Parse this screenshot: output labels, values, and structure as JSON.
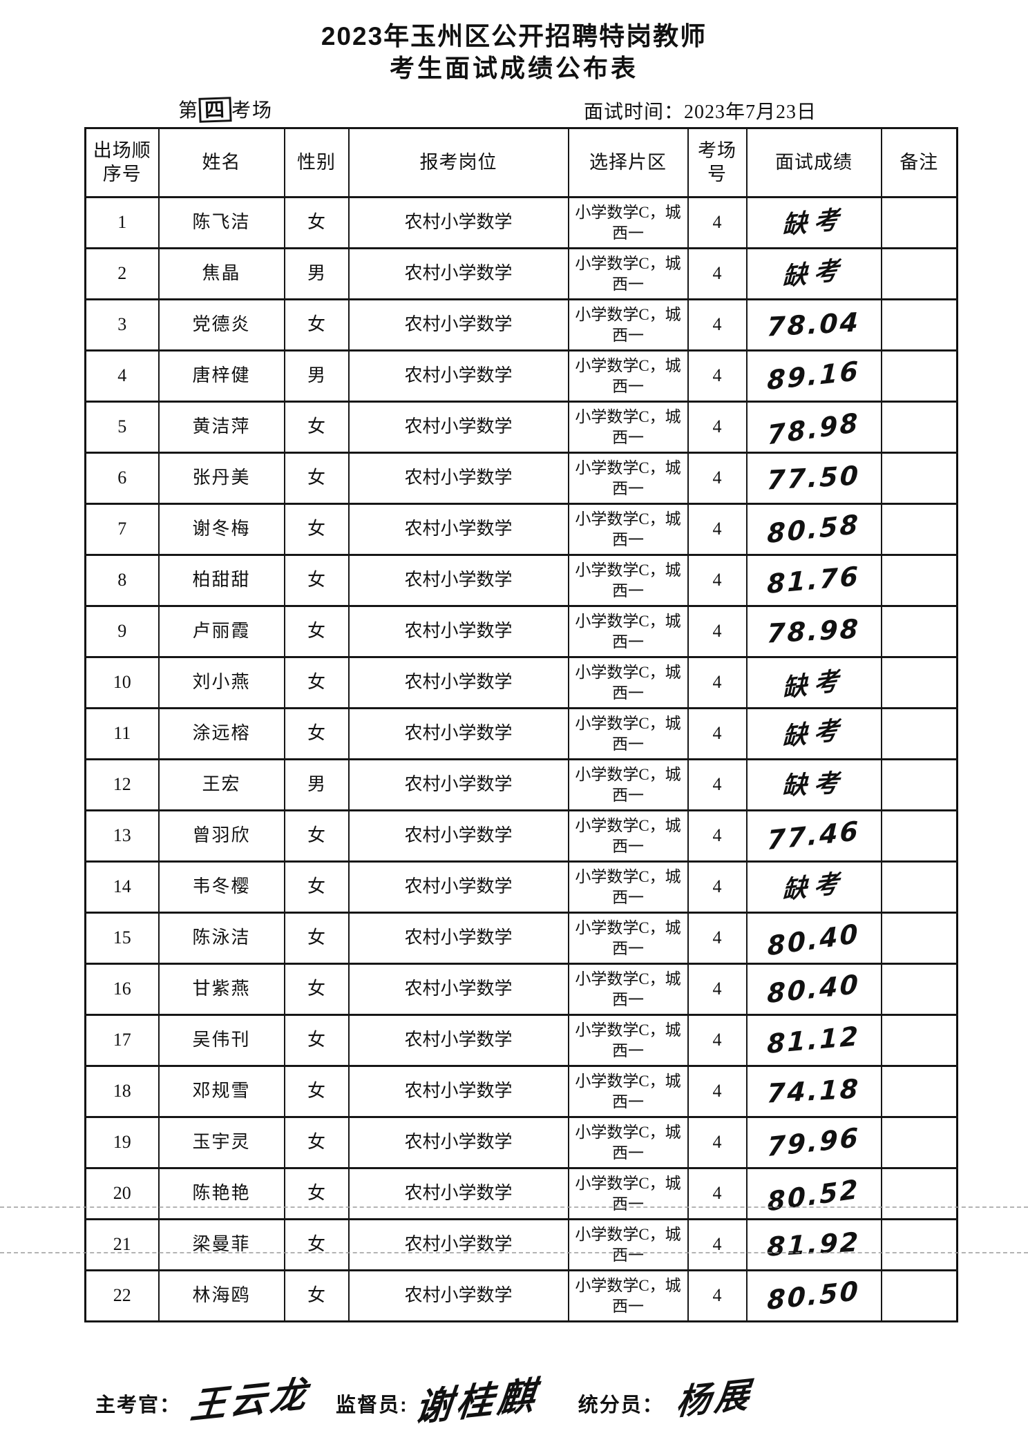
{
  "page": {
    "title_line1": "2023年玉州区公开招聘特岗教师",
    "title_line2": "考生面试成绩公布表",
    "venue_prefix": "第",
    "venue_number": "四",
    "venue_suffix": "考场",
    "interview_time": "面试时间：2023年7月23日"
  },
  "table": {
    "headers": [
      "出场顺序号",
      "姓名",
      "性别",
      "报考岗位",
      "选择片区",
      "考场号",
      "面试成绩",
      "备注"
    ],
    "rows": [
      {
        "no": "1",
        "name": "陈飞洁",
        "gender": "女",
        "position": "农村小学数学",
        "district": "小学数学C，城西一",
        "venue": "4",
        "score": "缺考",
        "absent": true,
        "remark": ""
      },
      {
        "no": "2",
        "name": "焦晶",
        "gender": "男",
        "position": "农村小学数学",
        "district": "小学数学C，城西一",
        "venue": "4",
        "score": "缺考",
        "absent": true,
        "remark": ""
      },
      {
        "no": "3",
        "name": "党德炎",
        "gender": "女",
        "position": "农村小学数学",
        "district": "小学数学C，城西一",
        "venue": "4",
        "score": "78.04",
        "absent": false,
        "remark": ""
      },
      {
        "no": "4",
        "name": "唐梓健",
        "gender": "男",
        "position": "农村小学数学",
        "district": "小学数学C，城西一",
        "venue": "4",
        "score": "89.16",
        "absent": false,
        "remark": ""
      },
      {
        "no": "5",
        "name": "黄洁萍",
        "gender": "女",
        "position": "农村小学数学",
        "district": "小学数学C，城西一",
        "venue": "4",
        "score": "78.98",
        "absent": false,
        "remark": ""
      },
      {
        "no": "6",
        "name": "张丹美",
        "gender": "女",
        "position": "农村小学数学",
        "district": "小学数学C，城西一",
        "venue": "4",
        "score": "77.50",
        "absent": false,
        "remark": ""
      },
      {
        "no": "7",
        "name": "谢冬梅",
        "gender": "女",
        "position": "农村小学数学",
        "district": "小学数学C，城西一",
        "venue": "4",
        "score": "80.58",
        "absent": false,
        "remark": ""
      },
      {
        "no": "8",
        "name": "柏甜甜",
        "gender": "女",
        "position": "农村小学数学",
        "district": "小学数学C，城西一",
        "venue": "4",
        "score": "81.76",
        "absent": false,
        "remark": ""
      },
      {
        "no": "9",
        "name": "卢丽霞",
        "gender": "女",
        "position": "农村小学数学",
        "district": "小学数学C，城西一",
        "venue": "4",
        "score": "78.98",
        "absent": false,
        "remark": ""
      },
      {
        "no": "10",
        "name": "刘小燕",
        "gender": "女",
        "position": "农村小学数学",
        "district": "小学数学C，城西一",
        "venue": "4",
        "score": "缺考",
        "absent": true,
        "remark": ""
      },
      {
        "no": "11",
        "name": "涂远榕",
        "gender": "女",
        "position": "农村小学数学",
        "district": "小学数学C，城西一",
        "venue": "4",
        "score": "缺考",
        "absent": true,
        "remark": ""
      },
      {
        "no": "12",
        "name": "王宏",
        "gender": "男",
        "position": "农村小学数学",
        "district": "小学数学C，城西一",
        "venue": "4",
        "score": "缺考",
        "absent": true,
        "remark": ""
      },
      {
        "no": "13",
        "name": "曾羽欣",
        "gender": "女",
        "position": "农村小学数学",
        "district": "小学数学C，城西一",
        "venue": "4",
        "score": "77.46",
        "absent": false,
        "remark": ""
      },
      {
        "no": "14",
        "name": "韦冬樱",
        "gender": "女",
        "position": "农村小学数学",
        "district": "小学数学C，城西一",
        "venue": "4",
        "score": "缺考",
        "absent": true,
        "remark": ""
      },
      {
        "no": "15",
        "name": "陈泳洁",
        "gender": "女",
        "position": "农村小学数学",
        "district": "小学数学C，城西一",
        "venue": "4",
        "score": "80.40",
        "absent": false,
        "remark": ""
      },
      {
        "no": "16",
        "name": "甘紫燕",
        "gender": "女",
        "position": "农村小学数学",
        "district": "小学数学C，城西一",
        "venue": "4",
        "score": "80.40",
        "absent": false,
        "remark": ""
      },
      {
        "no": "17",
        "name": "吴伟刊",
        "gender": "女",
        "position": "农村小学数学",
        "district": "小学数学C，城西一",
        "venue": "4",
        "score": "81.12",
        "absent": false,
        "remark": ""
      },
      {
        "no": "18",
        "name": "邓规雪",
        "gender": "女",
        "position": "农村小学数学",
        "district": "小学数学C，城西一",
        "venue": "4",
        "score": "74.18",
        "absent": false,
        "remark": ""
      },
      {
        "no": "19",
        "name": "玉宇灵",
        "gender": "女",
        "position": "农村小学数学",
        "district": "小学数学C，城西一",
        "venue": "4",
        "score": "79.96",
        "absent": false,
        "remark": ""
      },
      {
        "no": "20",
        "name": "陈艳艳",
        "gender": "女",
        "position": "农村小学数学",
        "district": "小学数学C，城西一",
        "venue": "4",
        "score": "80.52",
        "absent": false,
        "remark": ""
      },
      {
        "no": "21",
        "name": "梁曼菲",
        "gender": "女",
        "position": "农村小学数学",
        "district": "小学数学C，城西一",
        "venue": "4",
        "score": "81.92",
        "absent": false,
        "remark": ""
      },
      {
        "no": "22",
        "name": "林海鸥",
        "gender": "女",
        "position": "农村小学数学",
        "district": "小学数学C，城西一",
        "venue": "4",
        "score": "80.50",
        "absent": false,
        "remark": ""
      }
    ]
  },
  "footer": {
    "chief_label": "主考官：",
    "chief_signature": "王云龙",
    "supervisor_label": "监督员:",
    "supervisor_signature": "谢桂麒",
    "scorer_label": "统分员：",
    "scorer_signature": "杨展"
  }
}
